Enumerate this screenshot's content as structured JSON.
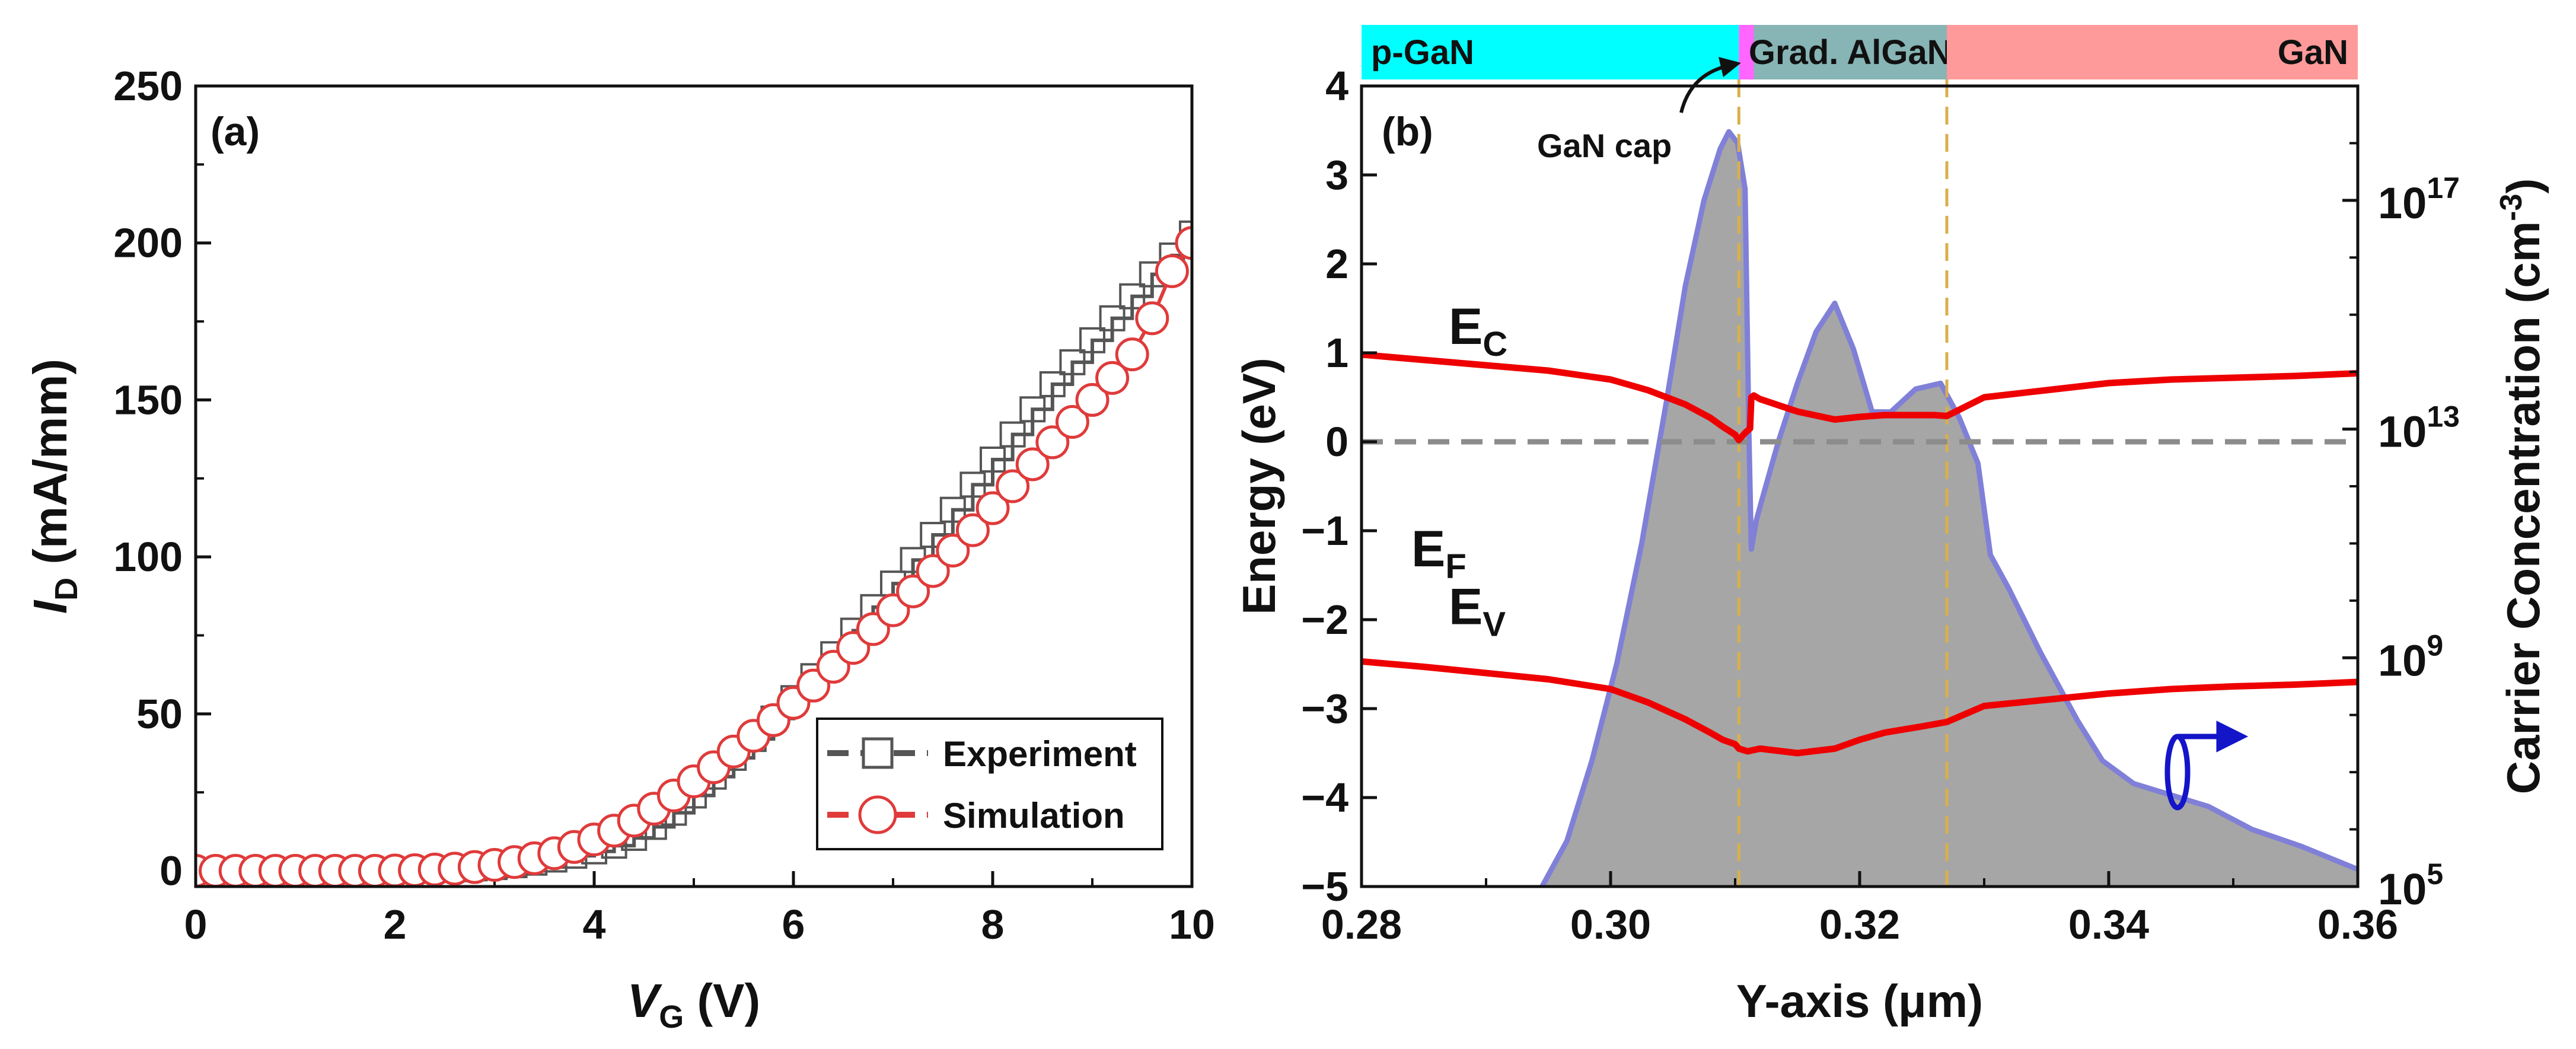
{
  "colors": {
    "experiment": "#555555",
    "simulation": "#e03a3a",
    "ec_ev": "#ee0000",
    "ef": "#8c8c8c",
    "density_fill": "#a6a6a6",
    "density_edge": "#8080d8",
    "right_arrow": "#1414c8",
    "region_pgan": "#00ffff",
    "region_cap": "#ff66ff",
    "region_grad": "#87b4b4",
    "region_gan": "#ff9a9a",
    "dashed_vline": "#d9b04a"
  },
  "chart_data": [
    {
      "type": "scatter",
      "panel_label": "(a)",
      "xlabel": {
        "main": "V",
        "sub": "G",
        "unit": " (V)"
      },
      "ylabel": {
        "main": "I",
        "sub": "D",
        "unit": " (mA/mm)"
      },
      "xlim": [
        0,
        10
      ],
      "ylim": [
        -5,
        250
      ],
      "xticks": [
        "0",
        "2",
        "4",
        "6",
        "8",
        "10"
      ],
      "yticks": [
        "0",
        "50",
        "100",
        "150",
        "200",
        "250"
      ],
      "legend": {
        "position": "bottom-right",
        "entries": [
          "Experiment",
          "Simulation"
        ]
      },
      "series": [
        {
          "name": "Experiment",
          "marker": "square",
          "x": [
            0.0,
            0.2,
            0.4,
            0.6,
            0.8,
            1.0,
            1.2,
            1.4,
            1.6,
            1.8,
            2.0,
            2.2,
            2.4,
            2.6,
            2.8,
            3.0,
            3.2,
            3.4,
            3.6,
            3.8,
            4.0,
            4.2,
            4.4,
            4.6,
            4.8,
            5.0,
            5.2,
            5.4,
            5.6,
            5.8,
            6.0,
            6.2,
            6.4,
            6.6,
            6.8,
            7.0,
            7.2,
            7.4,
            7.6,
            7.8,
            8.0,
            8.2,
            8.4,
            8.6,
            8.8,
            9.0,
            9.2,
            9.4,
            9.6,
            9.8,
            10.0
          ],
          "values": [
            0.0,
            0.0,
            0.0,
            0.0,
            0.0,
            0.0,
            0.0,
            0.0,
            0.0,
            0.0,
            0.1,
            0.2,
            0.3,
            0.5,
            0.8,
            1.2,
            1.8,
            2.6,
            3.6,
            4.8,
            6.2,
            8.0,
            10.5,
            14.0,
            18.5,
            24.0,
            30.0,
            36.0,
            42.0,
            48.5,
            55.0,
            62.0,
            69.0,
            76.5,
            84.0,
            91.5,
            99.0,
            107.0,
            115.0,
            123.0,
            131.0,
            139.0,
            147.0,
            155.0,
            162.0,
            169.0,
            176.0,
            183.0,
            190.0,
            196.0,
            203.0
          ]
        },
        {
          "name": "Simulation",
          "marker": "circle",
          "x": [
            0.0,
            0.2,
            0.4,
            0.6,
            0.8,
            1.0,
            1.2,
            1.4,
            1.6,
            1.8,
            2.0,
            2.2,
            2.4,
            2.6,
            2.8,
            3.0,
            3.2,
            3.4,
            3.6,
            3.8,
            4.0,
            4.2,
            4.4,
            4.6,
            4.8,
            5.0,
            5.2,
            5.4,
            5.6,
            5.8,
            6.0,
            6.2,
            6.4,
            6.6,
            6.8,
            7.0,
            7.2,
            7.4,
            7.6,
            7.8,
            8.0,
            8.2,
            8.4,
            8.6,
            8.8,
            9.0,
            9.2,
            9.4,
            9.6,
            9.8,
            10.0
          ],
          "values": [
            0.0,
            0.0,
            0.0,
            0.0,
            0.0,
            0.0,
            0.0,
            0.0,
            0.0,
            0.0,
            0.1,
            0.2,
            0.4,
            0.7,
            1.2,
            1.9,
            2.8,
            4.0,
            5.6,
            7.6,
            10.0,
            12.8,
            16.0,
            19.8,
            24.0,
            28.5,
            33.0,
            38.0,
            43.0,
            48.0,
            53.5,
            59.0,
            65.0,
            71.0,
            77.0,
            83.0,
            89.0,
            95.5,
            102.0,
            108.5,
            115.5,
            122.5,
            129.5,
            136.5,
            143.0,
            150.0,
            157.0,
            164.5,
            176.0,
            191.0,
            200.0
          ]
        }
      ]
    },
    {
      "type": "line",
      "panel_label": "(b)",
      "xlabel": "Y-axis (μm)",
      "ylabel": "Energy (eV)",
      "ylabel_right": {
        "main": "Carrier Concentration (cm",
        "sup": "-3",
        "end": ")"
      },
      "xlim": [
        0.28,
        0.36
      ],
      "ylim": [
        -5,
        4
      ],
      "xticks": [
        "0.28",
        "0.30",
        "0.32",
        "0.34",
        "0.36"
      ],
      "yticks": [
        "−5",
        "−4",
        "−3",
        "−2",
        "−1",
        "0",
        "1",
        "2",
        "3",
        "4"
      ],
      "right_ylim_log10": [
        5,
        19
      ],
      "right_yticks": [
        {
          "base": "10",
          "exp": "5",
          "log10": 5
        },
        {
          "base": "10",
          "exp": "9",
          "log10": 9
        },
        {
          "base": "10",
          "exp": "13",
          "log10": 13
        },
        {
          "base": "10",
          "exp": "17",
          "log10": 17
        }
      ],
      "regions": [
        {
          "label": "p-GaN",
          "from": 0.28,
          "to": 0.3103,
          "align": "start"
        },
        {
          "label": "",
          "from": 0.3103,
          "to": 0.3115
        },
        {
          "label": "Grad. AlGaN",
          "from": 0.3115,
          "to": 0.327,
          "align": "middle"
        },
        {
          "label": "GaN",
          "from": 0.327,
          "to": 0.36,
          "align": "end"
        }
      ],
      "annotations": {
        "gan_cap": "GaN cap",
        "ec": {
          "main": "E",
          "sub": "C",
          "x": 0.287,
          "y": 1.1
        },
        "ef": {
          "main": "E",
          "sub": "F",
          "x": 0.284,
          "y": -1.4
        },
        "ev": {
          "main": "E",
          "sub": "V",
          "x": 0.287,
          "y": -2.05
        }
      },
      "vlines": [
        0.3103,
        0.327
      ],
      "series": [
        {
          "name": "EC",
          "x": [
            0.28,
            0.285,
            0.29,
            0.295,
            0.3,
            0.303,
            0.306,
            0.308,
            0.309,
            0.31,
            0.3103,
            0.3108,
            0.3112,
            0.3113,
            0.3115,
            0.312,
            0.315,
            0.318,
            0.32,
            0.322,
            0.324,
            0.326,
            0.327,
            0.33,
            0.335,
            0.34,
            0.345,
            0.35,
            0.355,
            0.36
          ],
          "values": [
            0.98,
            0.92,
            0.86,
            0.8,
            0.7,
            0.58,
            0.42,
            0.27,
            0.17,
            0.08,
            0.02,
            0.1,
            0.15,
            0.5,
            0.52,
            0.48,
            0.34,
            0.25,
            0.28,
            0.3,
            0.3,
            0.3,
            0.29,
            0.5,
            0.58,
            0.66,
            0.7,
            0.72,
            0.74,
            0.77
          ]
        },
        {
          "name": "EF",
          "dashed": true,
          "x": [
            0.28,
            0.36
          ],
          "values": [
            0,
            0
          ]
        },
        {
          "name": "EV",
          "x": [
            0.28,
            0.285,
            0.29,
            0.295,
            0.3,
            0.303,
            0.306,
            0.308,
            0.309,
            0.31,
            0.3103,
            0.311,
            0.312,
            0.315,
            0.318,
            0.32,
            0.322,
            0.325,
            0.327,
            0.33,
            0.335,
            0.34,
            0.345,
            0.35,
            0.355,
            0.36
          ],
          "values": [
            -2.47,
            -2.53,
            -2.6,
            -2.67,
            -2.78,
            -2.93,
            -3.12,
            -3.27,
            -3.35,
            -3.4,
            -3.45,
            -3.48,
            -3.45,
            -3.5,
            -3.45,
            -3.35,
            -3.27,
            -3.2,
            -3.15,
            -2.97,
            -2.9,
            -2.83,
            -2.78,
            -2.75,
            -2.73,
            -2.7
          ]
        },
        {
          "name": "Carrier Concentration",
          "axis": "right",
          "fill": true,
          "x": [
            0.2945,
            0.2965,
            0.2985,
            0.3005,
            0.3025,
            0.3045,
            0.306,
            0.3075,
            0.3088,
            0.3095,
            0.3102,
            0.3108,
            0.3111,
            0.3113,
            0.3117,
            0.3122,
            0.3135,
            0.315,
            0.3165,
            0.318,
            0.3195,
            0.321,
            0.3225,
            0.3245,
            0.3265,
            0.328,
            0.3295,
            0.3305,
            0.332,
            0.3345,
            0.3375,
            0.3395,
            0.342,
            0.345,
            0.348,
            0.3515,
            0.3555,
            0.36
          ],
          "values_log10": [
            5.0,
            5.8,
            7.2,
            8.9,
            11.0,
            13.5,
            15.5,
            17.0,
            17.9,
            18.2,
            18.0,
            17.2,
            13.0,
            10.9,
            11.4,
            11.8,
            12.8,
            13.8,
            14.7,
            15.2,
            14.4,
            13.3,
            13.3,
            13.7,
            13.8,
            13.2,
            12.4,
            10.8,
            10.2,
            9.1,
            7.9,
            7.2,
            6.8,
            6.6,
            6.4,
            6.0,
            5.7,
            5.3
          ]
        }
      ]
    }
  ]
}
